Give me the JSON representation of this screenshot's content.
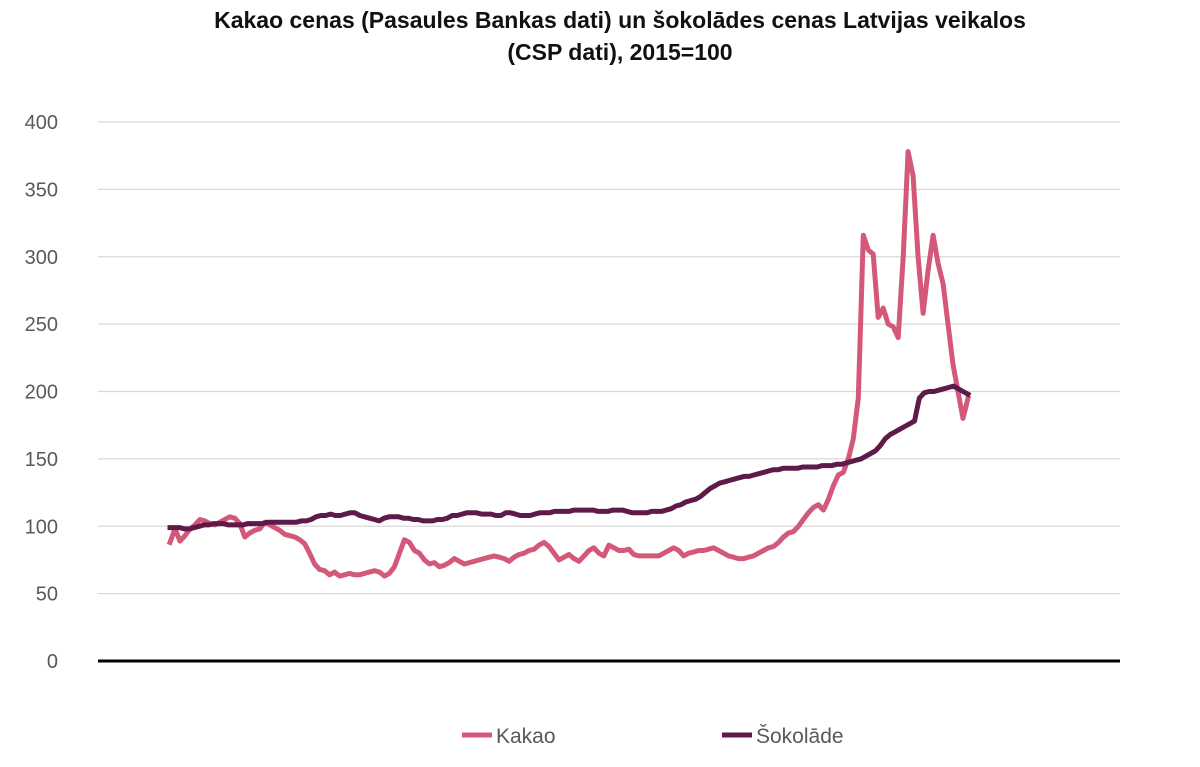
{
  "chart_data": {
    "type": "line",
    "title_line1": "Kakao cenas (Pasaules Bankas dati) un šokolādes cenas Latvijas veikalos",
    "title_line2": "(CSP dati), 2015=100",
    "ylim": [
      0,
      400
    ],
    "y_ticks": [
      "0",
      "50",
      "100",
      "150",
      "200",
      "250",
      "300",
      "350",
      "400"
    ],
    "y_tick_values": [
      0,
      50,
      100,
      150,
      200,
      250,
      300,
      350,
      400
    ],
    "grid": true,
    "legend_position": "bottom-center",
    "series": [
      {
        "name": "Kakao",
        "color": "#d4587a",
        "values": [
          88,
          98,
          89,
          93,
          98,
          101,
          105,
          104,
          102,
          101,
          103,
          105,
          107,
          106,
          102,
          92,
          95,
          97,
          98,
          103,
          101,
          99,
          97,
          94,
          93,
          92,
          90,
          87,
          80,
          72,
          68,
          67,
          64,
          66,
          63,
          64,
          65,
          64,
          64,
          65,
          66,
          67,
          66,
          63,
          65,
          70,
          80,
          90,
          88,
          82,
          80,
          75,
          72,
          73,
          70,
          71,
          73,
          76,
          74,
          72,
          73,
          74,
          75,
          76,
          77,
          78,
          77,
          76,
          74,
          77,
          79,
          80,
          82,
          83,
          86,
          88,
          85,
          80,
          75,
          77,
          79,
          76,
          74,
          78,
          82,
          84,
          80,
          78,
          86,
          84,
          82,
          82,
          83,
          79,
          78,
          78,
          78,
          78,
          78,
          80,
          82,
          84,
          82,
          78,
          80,
          81,
          82,
          82,
          83,
          84,
          82,
          80,
          78,
          77,
          76,
          76,
          77,
          78,
          80,
          82,
          84,
          85,
          88,
          92,
          95,
          96,
          100,
          105,
          110,
          114,
          116,
          112,
          120,
          130,
          138,
          140,
          150,
          165,
          195,
          316,
          305,
          302,
          255,
          262,
          250,
          248,
          240,
          300,
          378,
          360,
          300,
          258,
          290,
          316,
          295,
          280,
          250,
          220,
          200,
          180,
          195
        ]
      },
      {
        "name": "Šokolāde",
        "color": "#5e1a48",
        "values": [
          99,
          99,
          99,
          98,
          98,
          99,
          100,
          101,
          101,
          102,
          102,
          102,
          101,
          101,
          101,
          101,
          102,
          102,
          102,
          102,
          103,
          103,
          103,
          103,
          103,
          103,
          103,
          104,
          104,
          105,
          107,
          108,
          108,
          109,
          108,
          108,
          109,
          110,
          110,
          108,
          107,
          106,
          105,
          104,
          106,
          107,
          107,
          107,
          106,
          106,
          105,
          105,
          104,
          104,
          104,
          105,
          105,
          106,
          108,
          108,
          109,
          110,
          110,
          110,
          109,
          109,
          109,
          108,
          108,
          110,
          110,
          109,
          108,
          108,
          108,
          109,
          110,
          110,
          110,
          111,
          111,
          111,
          111,
          112,
          112,
          112,
          112,
          112,
          111,
          111,
          111,
          112,
          112,
          112,
          111,
          110,
          110,
          110,
          110,
          111,
          111,
          111,
          112,
          113,
          115,
          116,
          118,
          119,
          120,
          122,
          125,
          128,
          130,
          132,
          133,
          134,
          135,
          136,
          137,
          137,
          138,
          139,
          140,
          141,
          142,
          142,
          143,
          143,
          143,
          143,
          144,
          144,
          144,
          144,
          145,
          145,
          145,
          146,
          146,
          147,
          148,
          149,
          150,
          152,
          154,
          156,
          160,
          165,
          168,
          170,
          172,
          174,
          176,
          178,
          195,
          199,
          200,
          200,
          201,
          202,
          203,
          204,
          202,
          200,
          198
        ]
      }
    ]
  }
}
